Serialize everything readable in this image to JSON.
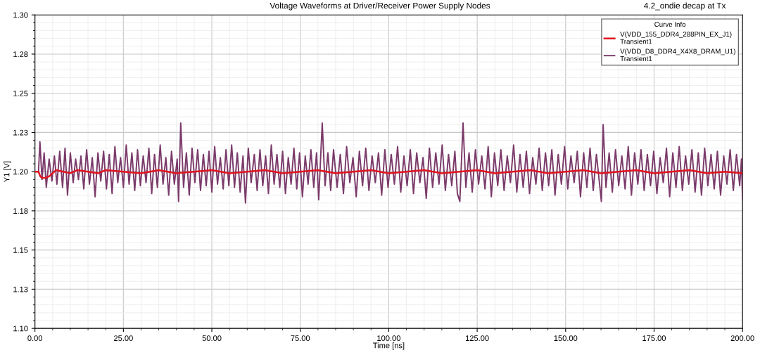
{
  "chart_data": {
    "type": "line",
    "title": "Voltage Waveforms at Driver/Receiver Power Supply Nodes",
    "xlabel": "Time [ns]",
    "ylabel": "Y1 [V]",
    "legend_title": "Curve Info",
    "annotations": [
      "4.2_ondie decap at Tx"
    ],
    "xlim": [
      0,
      200
    ],
    "ylim": [
      1.1,
      1.3
    ],
    "xticks": [
      {
        "value": 0,
        "label": "0.00"
      },
      {
        "value": 25,
        "label": "25.00"
      },
      {
        "value": 50,
        "label": "50.00"
      },
      {
        "value": 75,
        "label": "75.00"
      },
      {
        "value": 100,
        "label": "100.00"
      },
      {
        "value": 125,
        "label": "125.00"
      },
      {
        "value": 150,
        "label": "150.00"
      },
      {
        "value": 175,
        "label": "175.00"
      },
      {
        "value": 200,
        "label": "200.00"
      }
    ],
    "yticks": [
      {
        "value": 1.1,
        "label": "1.10"
      },
      {
        "value": 1.125,
        "label": "1.13"
      },
      {
        "value": 1.15,
        "label": "1.15"
      },
      {
        "value": 1.175,
        "label": "1.18"
      },
      {
        "value": 1.2,
        "label": "1.20"
      },
      {
        "value": 1.225,
        "label": "1.23"
      },
      {
        "value": 1.25,
        "label": "1.25"
      },
      {
        "value": 1.275,
        "label": "1.28"
      },
      {
        "value": 1.3,
        "label": "1.30"
      }
    ],
    "grid": true,
    "legend": "top right",
    "line_style": "solid",
    "marker": "none",
    "series": [
      {
        "name": "V(VDD_155_DDR4_288PIN_EX_J1)\nTransient1",
        "color": "#e0141e",
        "x": [
          0,
          1.0,
          1.5,
          2.0,
          3.0,
          4.0,
          5.0,
          6.0,
          8,
          10,
          12,
          15,
          18,
          20,
          25,
          30,
          35,
          40,
          45,
          50,
          55,
          60,
          65,
          70,
          75,
          80,
          85,
          90,
          95,
          100,
          105,
          110,
          115,
          120,
          125,
          130,
          135,
          140,
          145,
          150,
          155,
          160,
          165,
          170,
          175,
          180,
          185,
          190,
          195,
          200
        ],
        "values": [
          1.2,
          1.2,
          1.197,
          1.196,
          1.196,
          1.197,
          1.199,
          1.201,
          1.2,
          1.199,
          1.201,
          1.2,
          1.199,
          1.201,
          1.2,
          1.199,
          1.201,
          1.199,
          1.2,
          1.201,
          1.199,
          1.2,
          1.201,
          1.199,
          1.2,
          1.201,
          1.199,
          1.2,
          1.201,
          1.199,
          1.2,
          1.201,
          1.199,
          1.2,
          1.201,
          1.199,
          1.2,
          1.201,
          1.199,
          1.2,
          1.201,
          1.199,
          1.2,
          1.201,
          1.199,
          1.2,
          1.201,
          1.199,
          1.2,
          1.199
        ]
      },
      {
        "name": "V(VDD_D8_DDR4_X4X8_DRAM_U1)\nTransient1",
        "color": "#7b3b6b",
        "x": [
          0,
          1.0,
          1.4,
          2.0,
          2.6,
          3.2,
          4.0,
          4.8,
          5.5,
          6.2,
          7.0,
          7.8,
          8.5,
          9.2,
          10.0,
          10.8,
          11.5,
          12.3,
          13.0,
          13.8,
          14.6,
          15.4,
          16.2,
          17.0,
          17.8,
          18.6,
          19.4,
          20.2,
          21.0,
          21.8,
          22.6,
          23.4,
          24.2,
          25.0,
          25.8,
          26.6,
          27.4,
          28.2,
          29.0,
          29.8,
          30.6,
          31.4,
          32.2,
          33.0,
          33.8,
          34.6,
          35.4,
          36.2,
          37.0,
          37.8,
          38.6,
          39.4,
          40.2,
          40.6,
          41.2,
          42.0,
          42.8,
          43.6,
          44.4,
          45.2,
          46.0,
          46.8,
          47.6,
          48.4,
          49.2,
          50.0,
          50.8,
          51.6,
          52.4,
          53.2,
          54.0,
          54.8,
          55.6,
          56.4,
          57.2,
          58.0,
          58.8,
          59.5,
          60.3,
          61.1,
          62.0,
          62.8,
          63.6,
          64.4,
          65.2,
          66.0,
          66.8,
          67.6,
          68.4,
          69.2,
          70.0,
          70.8,
          71.6,
          72.4,
          73.2,
          74.0,
          74.8,
          75.6,
          76.4,
          77.2,
          78.0,
          78.8,
          79.6,
          80.2,
          81.2,
          82.0,
          82.8,
          83.6,
          84.4,
          85.4,
          86.3,
          87.2,
          88.1,
          89.0,
          89.9,
          90.8,
          91.7,
          92.6,
          93.5,
          94.4,
          95.3,
          96.2,
          97.1,
          98.0,
          98.9,
          99.8,
          100.7,
          101.6,
          102.5,
          103.4,
          104.3,
          105.2,
          106.1,
          107.0,
          107.9,
          108.8,
          109.7,
          110.6,
          111.5,
          112.4,
          113.3,
          114.2,
          115.1,
          116.0,
          116.9,
          117.8,
          118.7,
          119.4,
          120.1,
          121.0,
          121.8,
          122.7,
          123.6,
          124.5,
          125.4,
          126.3,
          127.2,
          128.1,
          129.0,
          129.9,
          130.8,
          131.7,
          132.6,
          133.5,
          134.4,
          135.3,
          136.2,
          137.1,
          138.0,
          138.9,
          139.8,
          140.7,
          141.6,
          142.5,
          143.4,
          144.3,
          145.2,
          146.1,
          147.0,
          147.9,
          148.8,
          149.7,
          150.6,
          151.5,
          152.4,
          153.3,
          154.2,
          155.1,
          156.0,
          156.9,
          157.8,
          158.7,
          159.6,
          160.1,
          160.6,
          161.4,
          162.3,
          163.2,
          164.1,
          165.0,
          165.9,
          166.8,
          167.7,
          168.6,
          169.5,
          170.4,
          171.3,
          172.2,
          173.1,
          174.0,
          174.9,
          175.8,
          176.7,
          177.6,
          178.5,
          179.4,
          180.3,
          181.2,
          182.1,
          183.0,
          183.9,
          184.8,
          185.7,
          186.6,
          187.5,
          188.4,
          189.3,
          190.2,
          191.1,
          192.0,
          192.9,
          193.8,
          194.7,
          195.6,
          196.5,
          197.4,
          198.3,
          199.2,
          199.7,
          200.0
        ],
        "values": [
          1.2,
          1.2,
          1.219,
          1.195,
          1.212,
          1.19,
          1.208,
          1.194,
          1.21,
          1.192,
          1.213,
          1.19,
          1.215,
          1.185,
          1.212,
          1.193,
          1.208,
          1.195,
          1.21,
          1.189,
          1.214,
          1.192,
          1.209,
          1.184,
          1.212,
          1.194,
          1.213,
          1.189,
          1.211,
          1.186,
          1.216,
          1.193,
          1.209,
          1.19,
          1.217,
          1.192,
          1.212,
          1.188,
          1.214,
          1.191,
          1.21,
          1.193,
          1.215,
          1.186,
          1.211,
          1.19,
          1.217,
          1.192,
          1.209,
          1.185,
          1.213,
          1.192,
          1.208,
          1.181,
          1.231,
          1.19,
          1.212,
          1.185,
          1.215,
          1.193,
          1.214,
          1.188,
          1.211,
          1.191,
          1.213,
          1.187,
          1.216,
          1.192,
          1.209,
          1.189,
          1.214,
          1.191,
          1.217,
          1.19,
          1.212,
          1.187,
          1.21,
          1.18,
          1.215,
          1.193,
          1.211,
          1.188,
          1.214,
          1.191,
          1.21,
          1.186,
          1.217,
          1.192,
          1.211,
          1.19,
          1.213,
          1.186,
          1.209,
          1.192,
          1.215,
          1.189,
          1.212,
          1.184,
          1.21,
          1.192,
          1.214,
          1.19,
          1.212,
          1.182,
          1.231,
          1.191,
          1.212,
          1.188,
          1.214,
          1.19,
          1.211,
          1.186,
          1.216,
          1.193,
          1.209,
          1.184,
          1.213,
          1.191,
          1.215,
          1.188,
          1.21,
          1.193,
          1.212,
          1.185,
          1.214,
          1.19,
          1.211,
          1.192,
          1.216,
          1.187,
          1.21,
          1.191,
          1.214,
          1.186,
          1.212,
          1.193,
          1.209,
          1.183,
          1.215,
          1.19,
          1.212,
          1.192,
          1.217,
          1.188,
          1.211,
          1.191,
          1.213,
          1.186,
          1.181,
          1.231,
          1.19,
          1.212,
          1.187,
          1.214,
          1.192,
          1.21,
          1.189,
          1.216,
          1.184,
          1.212,
          1.191,
          1.214,
          1.188,
          1.21,
          1.193,
          1.217,
          1.187,
          1.211,
          1.19,
          1.213,
          1.186,
          1.209,
          1.192,
          1.215,
          1.188,
          1.212,
          1.191,
          1.214,
          1.185,
          1.211,
          1.192,
          1.216,
          1.189,
          1.21,
          1.193,
          1.213,
          1.184,
          1.212,
          1.19,
          1.215,
          1.188,
          1.211,
          1.192,
          1.181,
          1.23,
          1.19,
          1.212,
          1.187,
          1.214,
          1.191,
          1.21,
          1.189,
          1.216,
          1.185,
          1.212,
          1.192,
          1.214,
          1.188,
          1.211,
          1.191,
          1.213,
          1.186,
          1.209,
          1.193,
          1.215,
          1.184,
          1.212,
          1.19,
          1.216,
          1.188,
          1.21,
          1.192,
          1.214,
          1.187,
          1.212,
          1.185,
          1.215,
          1.191,
          1.211,
          1.189,
          1.213,
          1.185,
          1.21,
          1.192,
          1.214,
          1.188,
          1.211,
          1.191,
          1.208,
          1.182
        ]
      }
    ]
  }
}
